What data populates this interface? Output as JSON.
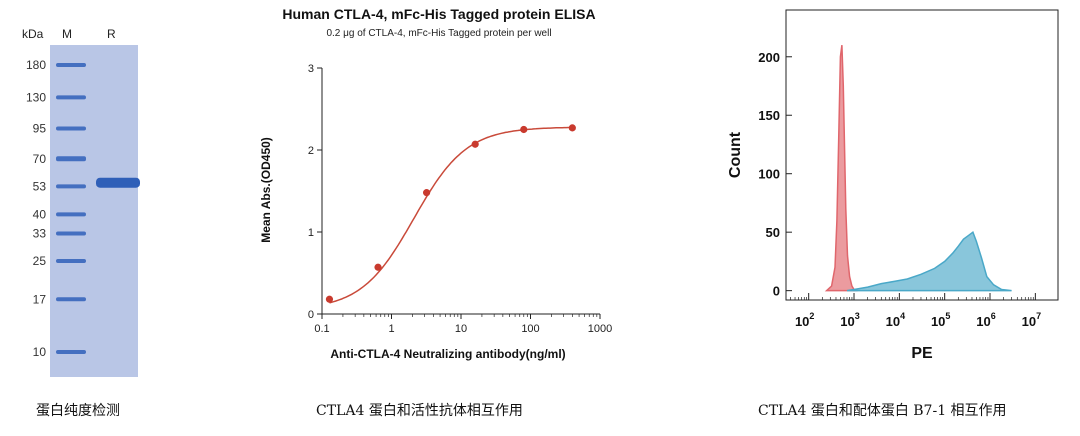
{
  "chart_data": [
    {
      "type": "gel",
      "lane_labels": [
        "kDa",
        "M",
        "R"
      ],
      "markers": [
        180,
        130,
        95,
        70,
        53,
        40,
        33,
        25,
        17,
        10
      ],
      "sample_band_kda": 55,
      "colors": {
        "background": "#b9c6e6",
        "band": "#2f5fb8"
      },
      "caption": "蛋白纯度检测"
    },
    {
      "type": "line",
      "title": "Human CTLA-4, mFc-His Tagged protein ELISA",
      "subtitle": "0.2 μg of CTLA-4, mFc-His Tagged protein per well",
      "xlabel": "Anti-CTLA-4 Neutralizing antibody(ng/ml)",
      "ylabel": "Mean Abs.(OD450)",
      "x_scale": "log",
      "xlim": [
        0.1,
        1000
      ],
      "ylim": [
        0,
        3
      ],
      "x_ticks": [
        "0.1",
        "1",
        "10",
        "100",
        "1000"
      ],
      "y_ticks": [
        "0",
        "1",
        "2",
        "3"
      ],
      "series": [
        {
          "x": [
            0.128,
            0.64,
            3.2,
            16,
            80,
            400
          ],
          "y": [
            0.18,
            0.57,
            1.48,
            2.07,
            2.25,
            2.27
          ]
        }
      ],
      "colors": {
        "line": "#c94a3a",
        "point": "#c93a2e"
      },
      "caption": "CTLA4 蛋白和活性抗体相互作用"
    },
    {
      "type": "area",
      "xlabel": "PE",
      "ylabel": "Count",
      "x_scale": "log",
      "xlim": [
        31.6,
        31600000
      ],
      "ylim": [
        -8,
        240
      ],
      "x_ticks": [
        {
          "base": "10",
          "exp": "2"
        },
        {
          "base": "10",
          "exp": "3"
        },
        {
          "base": "10",
          "exp": "4"
        },
        {
          "base": "10",
          "exp": "5"
        },
        {
          "base": "10",
          "exp": "6"
        },
        {
          "base": "10",
          "exp": "7"
        }
      ],
      "y_ticks": [
        "0",
        "50",
        "100",
        "150",
        "200"
      ],
      "series": [
        {
          "x": [
            250,
            320,
            380,
            420,
            460,
            500,
            540,
            580,
            620,
            660,
            720,
            800,
            900,
            1000,
            1200
          ],
          "y": [
            0,
            4,
            20,
            60,
            130,
            200,
            210,
            175,
            120,
            70,
            30,
            12,
            4,
            1,
            0
          ],
          "color": "#e0666c"
        },
        {
          "x": [
            700,
            1000,
            2000,
            4000,
            8000,
            15000,
            30000,
            60000,
            100000,
            150000,
            200000,
            260000,
            330000,
            420000,
            500000,
            650000,
            850000,
            1200000,
            1800000,
            3000000
          ],
          "y": [
            0,
            1,
            3,
            6,
            8,
            10,
            14,
            19,
            25,
            32,
            38,
            44,
            47,
            50,
            42,
            28,
            12,
            5,
            1,
            0
          ],
          "color": "#4aa8c8"
        }
      ],
      "caption": "CTLA4 蛋白和配体蛋白 B7-1 相互作用"
    }
  ]
}
